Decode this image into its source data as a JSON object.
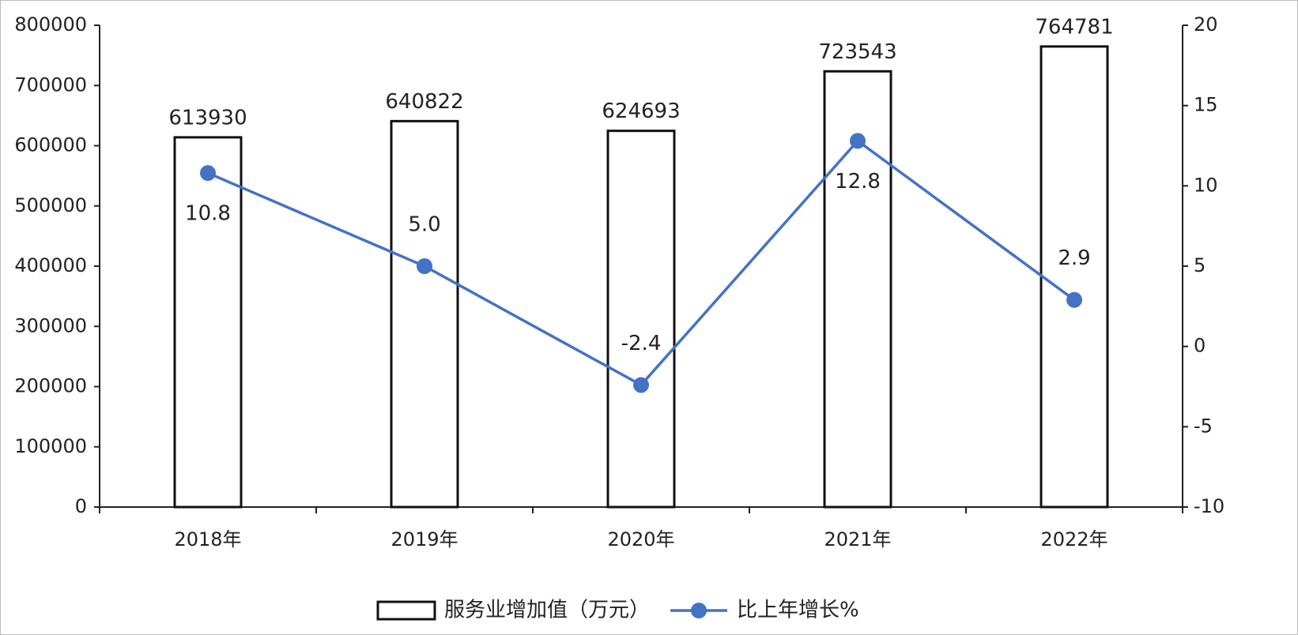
{
  "chart_data": {
    "type": "bar",
    "categories": [
      "2018年",
      "2019年",
      "2020年",
      "2021年",
      "2022年"
    ],
    "series": [
      {
        "name": "服务业增加值（万元）",
        "type": "bar",
        "color": "#ffffff",
        "values": [
          613930,
          640822,
          624693,
          723543,
          764781
        ]
      },
      {
        "name": "比上年增长%",
        "type": "line",
        "axis": "y2",
        "color": "#4472c4",
        "values": [
          10.8,
          5.0,
          -2.4,
          12.8,
          2.9
        ],
        "value_labels": [
          "10.8",
          "5.0",
          "-2.4",
          "12.8",
          "2.9"
        ]
      }
    ],
    "ylim": [
      0,
      800000
    ],
    "yticks": [
      0,
      100000,
      200000,
      300000,
      400000,
      500000,
      600000,
      700000,
      800000
    ],
    "y2lim": [
      -10,
      20
    ],
    "y2ticks": [
      -10,
      -5,
      0,
      5,
      10,
      15,
      20
    ],
    "legend": "bottom"
  }
}
